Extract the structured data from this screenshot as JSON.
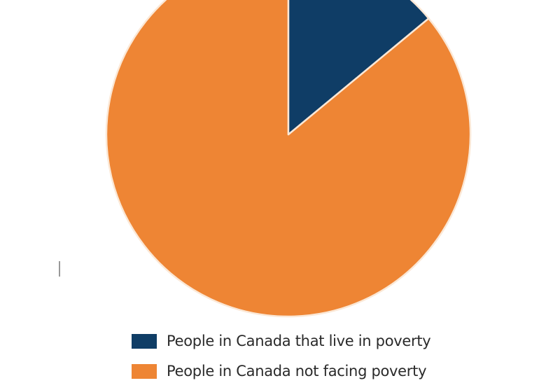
{
  "chart_data": {
    "type": "pie",
    "title": "",
    "slices": [
      {
        "name": "People in Canada that live in poverty",
        "value": 14,
        "color": "#0f3d66"
      },
      {
        "name": "People in Canada not facing poverty",
        "value": 86,
        "color": "#ee8534"
      }
    ],
    "start_angle": "12 o'clock, clockwise",
    "legend_position": "bottom"
  }
}
